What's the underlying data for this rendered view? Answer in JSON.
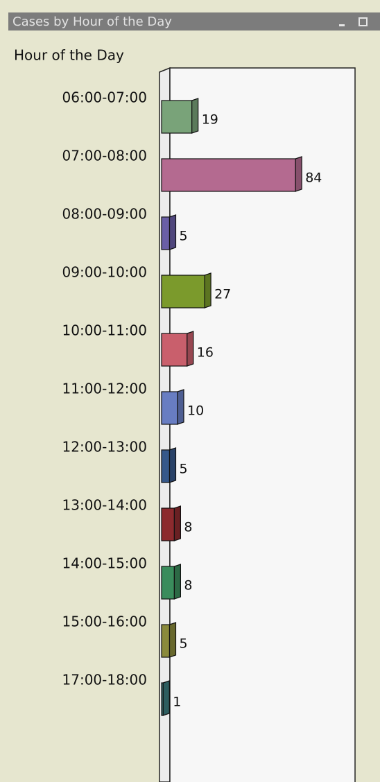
{
  "chart_data": {
    "type": "bar",
    "orientation": "horizontal",
    "title": "Cases by Hour of the Day",
    "y_axis_label": "Hour of the Day",
    "categories": [
      "06:00-07:00",
      "07:00-08:00",
      "08:00-09:00",
      "09:00-10:00",
      "10:00-11:00",
      "11:00-12:00",
      "12:00-13:00",
      "13:00-14:00",
      "14:00-15:00",
      "15:00-16:00",
      "17:00-18:00"
    ],
    "values": [
      19,
      84,
      5,
      27,
      16,
      10,
      5,
      8,
      8,
      5,
      1
    ],
    "colors": [
      "#79a379",
      "#b46a90",
      "#6a5fa6",
      "#7b9a2c",
      "#c95f6c",
      "#687dc2",
      "#36588a",
      "#8c2a2e",
      "#3a8c5c",
      "#8a8a3c",
      "#3c7c7e"
    ]
  }
}
